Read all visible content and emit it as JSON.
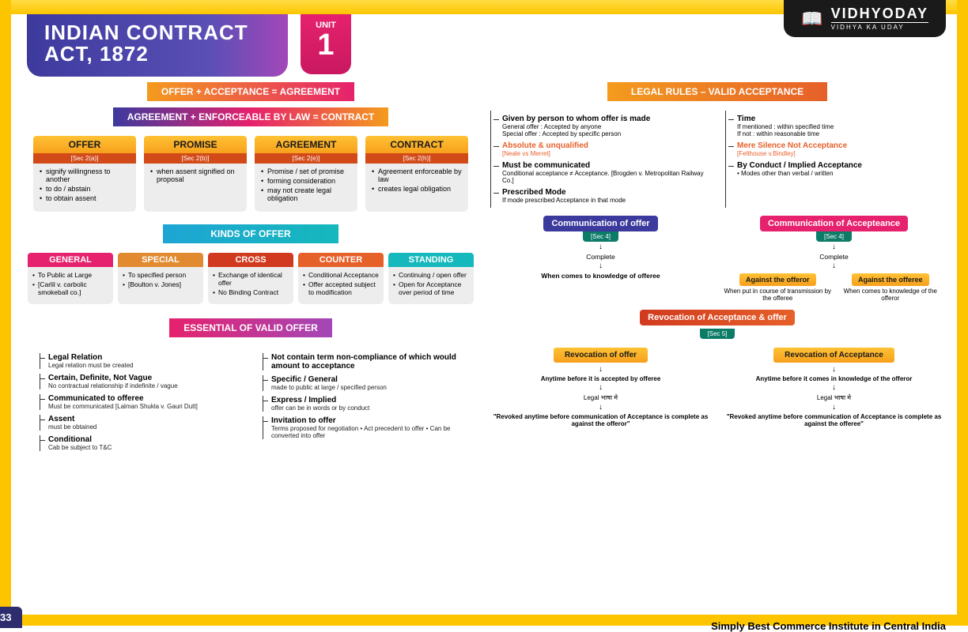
{
  "logo": {
    "title": "VIDHYODAY",
    "sub": "VIDHYA KA UDAY"
  },
  "pageNum": "33",
  "tagline": "Simply Best Commerce Institute in Central India",
  "title": {
    "line1": "INDIAN CONTRACT",
    "line2": "ACT, 1872"
  },
  "unit": {
    "label": "UNIT",
    "num": "1"
  },
  "eq1": "OFFER + ACCEPTANCE = AGREEMENT",
  "eq2": "AGREEMENT + ENFORCEABLE BY LAW = CONTRACT",
  "defs": [
    {
      "head": "OFFER",
      "sec": "[Sec 2(a)]",
      "items": [
        "signify willingness to another",
        "to do / abstain",
        "to obtain assent"
      ]
    },
    {
      "head": "PROMISE",
      "sec": "[Sec 2(b)]",
      "items": [
        "when assent signified on proposal"
      ]
    },
    {
      "head": "AGREEMENT",
      "sec": "[Sec 2(e)]",
      "items": [
        "Promise / set of promise",
        "forming consideration",
        "may not create legal obligation"
      ]
    },
    {
      "head": "CONTRACT",
      "sec": "[Sec 2(h)]",
      "items": [
        "Agreement enforceable by law",
        "creates legal obligation"
      ]
    }
  ],
  "kindsTitle": "KINDS OF OFFER",
  "kinds": [
    {
      "head": "GENERAL",
      "color": "#e6216d",
      "items": [
        "To Public at Large",
        "[Carlil v. carbolic smokeball co.]"
      ]
    },
    {
      "head": "SPECIAL",
      "color": "#e28a2f",
      "items": [
        "To specified person",
        "[Boulton v. Jones]"
      ]
    },
    {
      "head": "CROSS",
      "color": "#d13a1e",
      "items": [
        "Exchange of identical offer",
        "No Binding Contract"
      ]
    },
    {
      "head": "COUNTER",
      "color": "#e6602a",
      "items": [
        "Conditional Acceptance",
        "Offer accepted subject to modification"
      ]
    },
    {
      "head": "STANDING",
      "color": "#15b8bc",
      "items": [
        "Continuing / open offer",
        "Open for Acceptance over period of time"
      ]
    }
  ],
  "essTitle": "ESSENTIAL OF VALID OFFER",
  "essL": [
    {
      "t": "Legal Relation",
      "d": "Legal relation must be created"
    },
    {
      "t": "Certain, Definite, Not Vague",
      "d": "No contractual relationship if indefinite / vague"
    },
    {
      "t": "Communicated to offeree",
      "d": "Must be communicated [Lalman Shukla v. Gauri Dutt]"
    },
    {
      "t": "Assent",
      "d": "must be obtained"
    },
    {
      "t": "Conditional",
      "d": "Cab be subject to T&C"
    }
  ],
  "essR": [
    {
      "t": "Not contain term non-compliance of which would amount to acceptance",
      "d": ""
    },
    {
      "t": "Specific / General",
      "d": "made to public at large / specified person"
    },
    {
      "t": "Express / Implied",
      "d": "offer can be in words or by conduct"
    },
    {
      "t": "Invitation to offer",
      "d": "Terms proposed for negotiation • Act precedent to offer • Can be converted into offer"
    }
  ],
  "rulesTitle": "LEGAL RULES – VALID ACCEPTANCE",
  "rulesL": [
    {
      "t": "Given by person to whom offer is made",
      "d": "General offer : Accepted by anyone\nSpecial offer : Accepted by specific person"
    },
    {
      "t": "Absolute & unqualified",
      "d": "[Neale vs Merret]",
      "orange": true
    },
    {
      "t": "Must be communicated",
      "d": "Conditional acceptance ≠ Acceptance. [Brogden v. Metropolitan Railway Co.]"
    },
    {
      "t": "Prescribed Mode",
      "d": "If mode prescribed Acceptance in that mode"
    }
  ],
  "rulesR": [
    {
      "t": "Time",
      "d": "If mentioned : within specified time\nIf not : within reasonable time"
    },
    {
      "t": "Mere Silence Not Acceptance",
      "d": "[Felthouse v.Bindley]",
      "orange": true
    },
    {
      "t": "By Conduct / Implied Acceptance",
      "d": "• Modes other than verbal / written"
    }
  ],
  "comm": [
    {
      "title": "Communication of offer",
      "color": "#3d3a9e",
      "sec": "[Sec 4]",
      "flow": "Complete",
      "end": "When comes to knowledge of offeree"
    },
    {
      "title": "Communication of Accepteance",
      "color": "#e6216d",
      "sec": "[Sec 4]",
      "flow": "Complete",
      "split": [
        {
          "tag": "Against the offeror",
          "txt": "When put in course of transmission by the offeree"
        },
        {
          "tag": "Against the offeree",
          "txt": "When comes to knowledge of the offeror"
        }
      ]
    }
  ],
  "revoc": {
    "title": "Revocation of Acceptance & offer",
    "color": "#d13a1e",
    "sec": "[Sec 5]",
    "cols": [
      {
        "tag": "Revocation of offer",
        "line": "Anytime before it is accepted by offeree",
        "legal": "Legal भाषा मे",
        "quote": "\"Revoked anytime before communication of Acceptance is complete as against the offeror\""
      },
      {
        "tag": "Revocation of Acceptance",
        "line": "Anytime before it comes in knowledge of the offeror",
        "legal": "Legal भाषा मे",
        "quote": "\"Revoked anytime before communication of Acceptance is complete as against the offeree\""
      }
    ]
  }
}
